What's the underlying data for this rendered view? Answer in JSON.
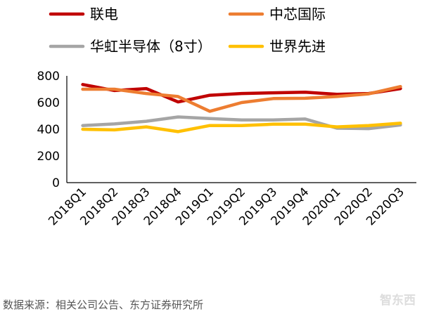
{
  "chart_data": {
    "type": "line",
    "title": "",
    "xlabel": "",
    "ylabel": "",
    "categories": [
      "2018Q1",
      "2018Q2",
      "2018Q3",
      "2018Q4",
      "2019Q1",
      "2019Q2",
      "2019Q3",
      "2019Q4",
      "2020Q1",
      "2020Q2",
      "2020Q3"
    ],
    "ylim": [
      0,
      800
    ],
    "yticks": [
      0,
      200,
      400,
      600,
      800
    ],
    "grid": false,
    "legend_position": "top",
    "series": [
      {
        "name": "联电",
        "color": "#c00000",
        "values": [
          735,
          690,
          705,
          605,
          655,
          668,
          673,
          678,
          662,
          668,
          705
        ]
      },
      {
        "name": "中芯国际",
        "color": "#ed7d31",
        "values": [
          700,
          700,
          668,
          645,
          535,
          600,
          630,
          632,
          645,
          665,
          720
        ]
      },
      {
        "name": "华虹半导体（8寸）",
        "color": "#a5a5a5",
        "values": [
          428,
          440,
          460,
          492,
          480,
          470,
          470,
          477,
          408,
          405,
          432
        ]
      },
      {
        "name": "世界先进",
        "color": "#ffc000",
        "values": [
          400,
          395,
          418,
          382,
          428,
          428,
          438,
          438,
          418,
          428,
          445
        ]
      }
    ]
  },
  "source_note": "数据来源：相关公司公告、东方证券研究所",
  "watermark": "智东西"
}
